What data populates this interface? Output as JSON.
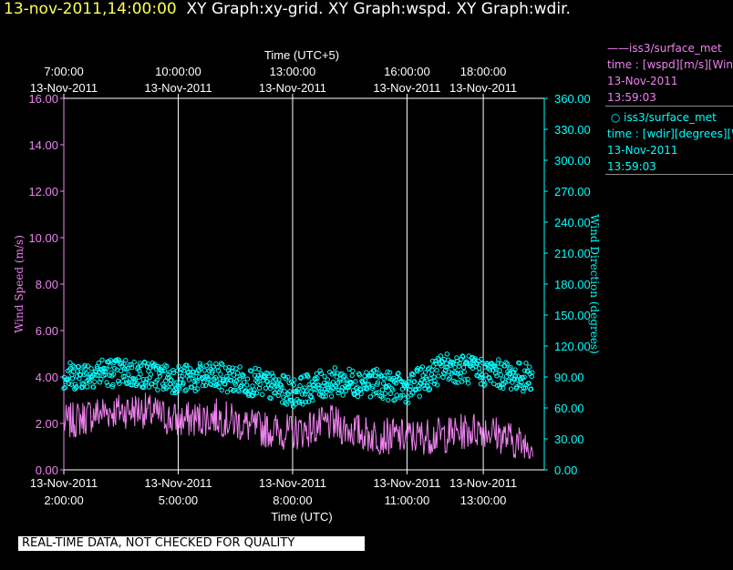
{
  "header": {
    "timestamp": "13-nov-2011,14:00:00",
    "graphs": "XY Graph:xy-grid.  XY Graph:wspd.  XY Graph:wdir."
  },
  "legend": [
    {
      "symbol": "——",
      "name": "iss3/surface_met",
      "line1": "time : [wspd][m/s][Wind Speed]",
      "line2": "13-Nov-2011",
      "line3": "13:59:03",
      "color": "#ee82ee"
    },
    {
      "symbol": "○",
      "name": "iss3/surface_met",
      "line1": "time : [wdir][degrees][Wind Direction]",
      "line2": "13-Nov-2011",
      "line3": "13:59:03",
      "color": "#00ffff"
    }
  ],
  "notice": "REAL-TIME DATA, NOT CHECKED FOR QUALITY",
  "chart_data": {
    "type": "line",
    "x_axis_bottom": {
      "label": "Time (UTC)",
      "ticks": [
        {
          "date": "13-Nov-2011",
          "time": "2:00:00"
        },
        {
          "date": "13-Nov-2011",
          "time": "5:00:00"
        },
        {
          "date": "13-Nov-2011",
          "time": "8:00:00"
        },
        {
          "date": "13-Nov-2011",
          "time": "11:00:00"
        },
        {
          "date": "13-Nov-2011",
          "time": "13:00:00"
        }
      ]
    },
    "x_axis_top": {
      "label": "Time (UTC+5)",
      "ticks": [
        {
          "time": "7:00:00",
          "date": "13-Nov-2011"
        },
        {
          "time": "10:00:00",
          "date": "13-Nov-2011"
        },
        {
          "time": "13:00:00",
          "date": "13-Nov-2011"
        },
        {
          "time": "16:00:00",
          "date": "13-Nov-2011"
        },
        {
          "time": "18:00:00",
          "date": "13-Nov-2011"
        }
      ]
    },
    "y_left": {
      "label": "Wind Speed (m/s)",
      "ylim": [
        0,
        16
      ],
      "ticks": [
        "0.00",
        "2.00",
        "4.00",
        "6.00",
        "8.00",
        "10.00",
        "12.00",
        "14.00",
        "16.00"
      ],
      "color": "#ee82ee"
    },
    "y_right": {
      "label": "Wind Direction (degrees)",
      "ylim": [
        0,
        360
      ],
      "ticks": [
        "0.00",
        "30.00",
        "60.00",
        "90.00",
        "120.00",
        "150.00",
        "180.00",
        "210.00",
        "240.00",
        "270.00",
        "300.00",
        "330.00",
        "360.00"
      ],
      "color": "#00ffff"
    },
    "grid": "vertical lines at bottom ticks",
    "series": [
      {
        "name": "iss3/surface_met wspd",
        "kind": "line",
        "color": "#ee82ee",
        "x_hours_utc": [
          2.0,
          3.0,
          4.0,
          5.0,
          6.0,
          7.0,
          8.0,
          9.0,
          10.0,
          11.0,
          12.0,
          13.0,
          14.0
        ],
        "values": [
          2.0,
          2.5,
          2.6,
          2.1,
          2.3,
          1.8,
          1.6,
          2.0,
          1.5,
          1.4,
          1.5,
          1.8,
          1.1
        ]
      },
      {
        "name": "iss3/surface_met wdir",
        "kind": "scatter",
        "color": "#00ffff",
        "x_hours_utc": [
          2.0,
          3.0,
          4.0,
          5.0,
          6.0,
          7.0,
          8.0,
          9.0,
          10.0,
          11.0,
          12.0,
          13.0,
          14.0
        ],
        "values": [
          90,
          95,
          93,
          88,
          90,
          85,
          75,
          85,
          85,
          78,
          100,
          95,
          90
        ]
      }
    ]
  }
}
